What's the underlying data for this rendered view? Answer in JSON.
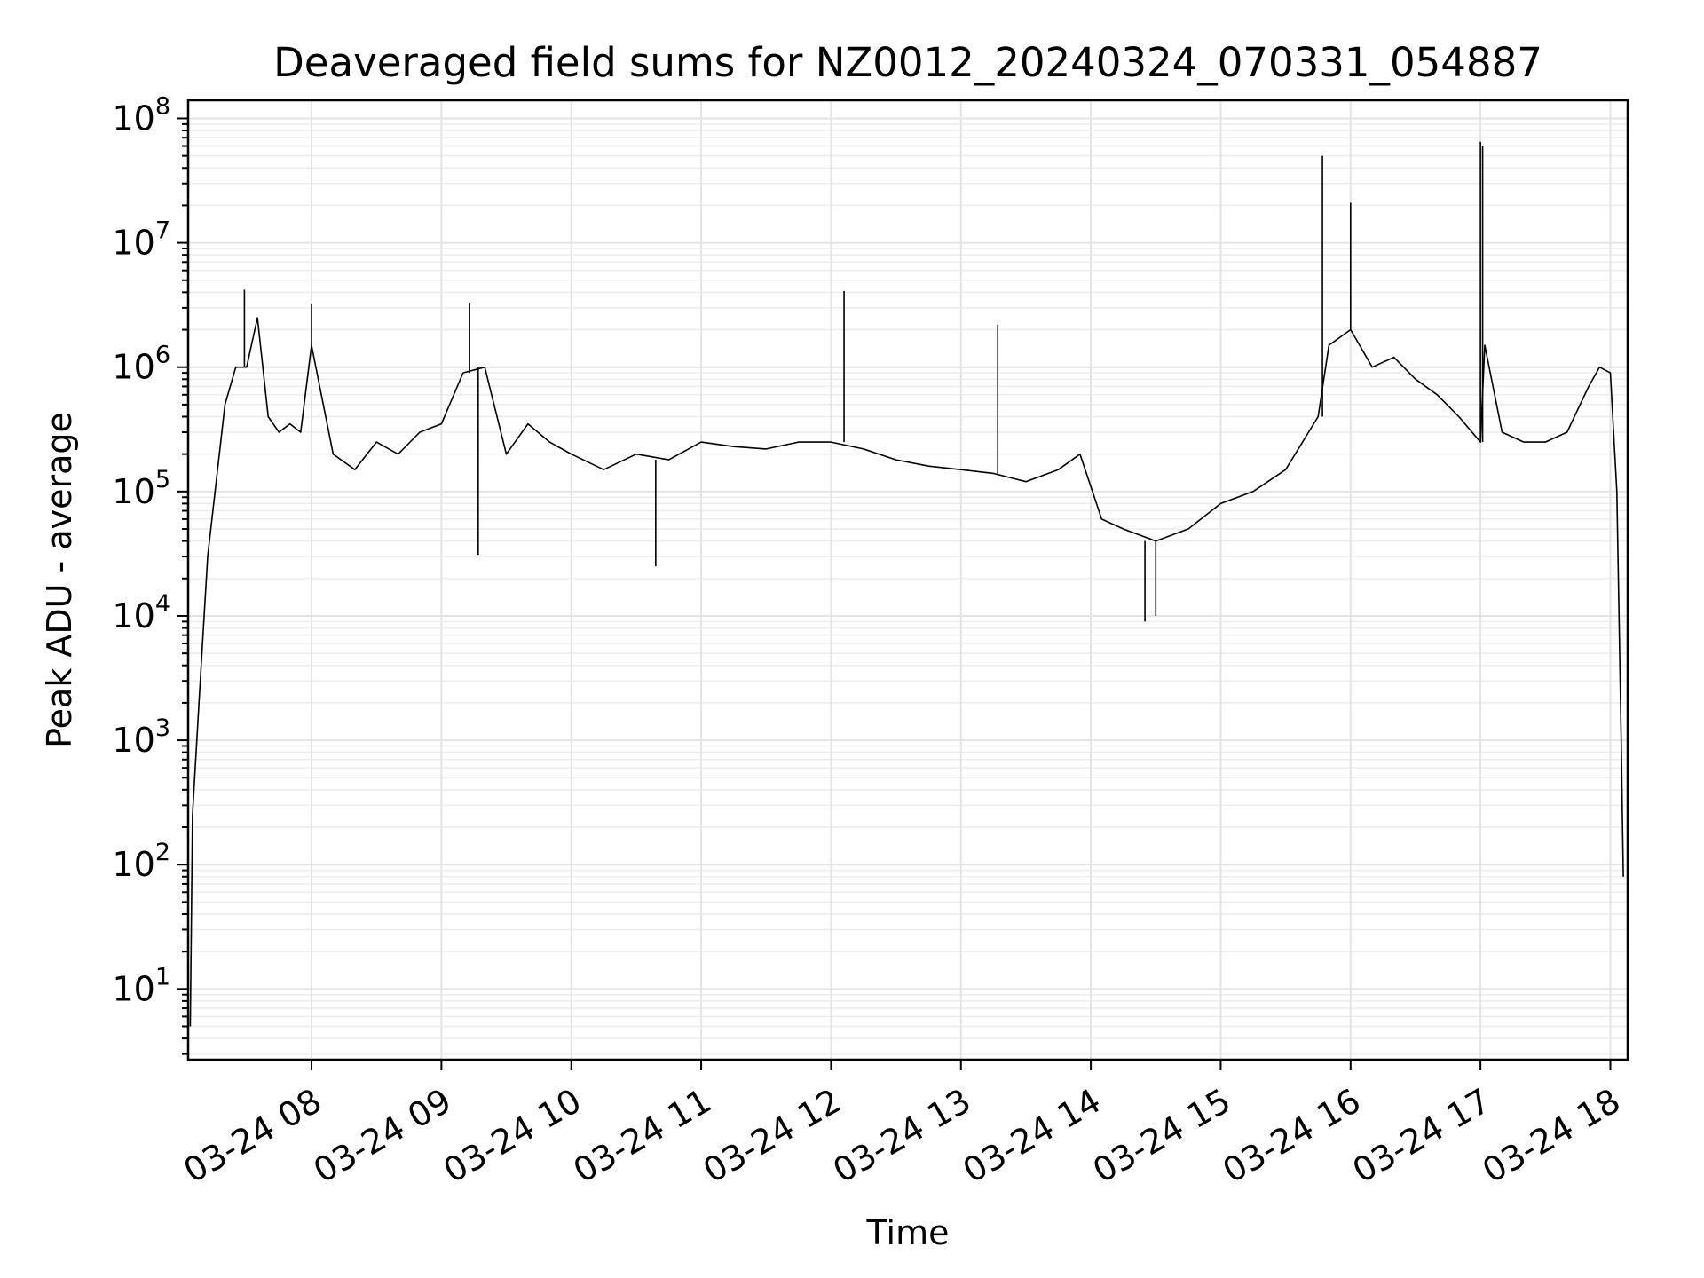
{
  "chart_data": {
    "type": "line",
    "title": "Deaveraged field sums for NZ0012_20240324_070331_054887",
    "xlabel": "Time",
    "ylabel": "Peak ADU - average",
    "yscale": "log",
    "grid": true,
    "ylim": [
      2.7,
      140000000
    ],
    "xlim": [
      "03-24 07:03",
      "03-24 18:08"
    ],
    "xticks": [
      "03-24 08",
      "03-24 09",
      "03-24 10",
      "03-24 11",
      "03-24 12",
      "03-24 13",
      "03-24 14",
      "03-24 15",
      "03-24 16",
      "03-24 17",
      "03-24 18"
    ],
    "yticks": [
      {
        "base": "10",
        "exp": "1",
        "value": 10
      },
      {
        "base": "10",
        "exp": "2",
        "value": 100
      },
      {
        "base": "10",
        "exp": "3",
        "value": 1000
      },
      {
        "base": "10",
        "exp": "4",
        "value": 10000
      },
      {
        "base": "10",
        "exp": "5",
        "value": 100000
      },
      {
        "base": "10",
        "exp": "6",
        "value": 1000000
      },
      {
        "base": "10",
        "exp": "7",
        "value": 10000000
      },
      {
        "base": "10",
        "exp": "8",
        "value": 100000000
      }
    ],
    "series": [
      {
        "color": "#000000",
        "x": [
          "03-24 07:04",
          "03-24 07:05",
          "03-24 07:08",
          "03-24 07:12",
          "03-24 07:20",
          "03-24 07:25",
          "03-24 07:30",
          "03-24 07:35",
          "03-24 07:40",
          "03-24 07:45",
          "03-24 07:50",
          "03-24 07:55",
          "03-24 08:00",
          "03-24 08:10",
          "03-24 08:20",
          "03-24 08:30",
          "03-24 08:40",
          "03-24 08:50",
          "03-24 09:00",
          "03-24 09:10",
          "03-24 09:20",
          "03-24 09:30",
          "03-24 09:40",
          "03-24 09:50",
          "03-24 10:00",
          "03-24 10:15",
          "03-24 10:30",
          "03-24 10:45",
          "03-24 11:00",
          "03-24 11:15",
          "03-24 11:30",
          "03-24 11:45",
          "03-24 12:00",
          "03-24 12:15",
          "03-24 12:30",
          "03-24 12:45",
          "03-24 13:00",
          "03-24 13:15",
          "03-24 13:30",
          "03-24 13:45",
          "03-24 13:55",
          "03-24 14:05",
          "03-24 14:15",
          "03-24 14:30",
          "03-24 14:45",
          "03-24 15:00",
          "03-24 15:15",
          "03-24 15:30",
          "03-24 15:45",
          "03-24 15:50",
          "03-24 16:00",
          "03-24 16:10",
          "03-24 16:20",
          "03-24 16:30",
          "03-24 16:40",
          "03-24 16:50",
          "03-24 17:00",
          "03-24 17:02",
          "03-24 17:10",
          "03-24 17:20",
          "03-24 17:30",
          "03-24 17:40",
          "03-24 17:50",
          "03-24 17:55",
          "03-24 18:00",
          "03-24 18:03",
          "03-24 18:05",
          "03-24 18:06"
        ],
        "y": [
          5,
          250,
          2000,
          30000,
          500000,
          1000000,
          1000000,
          2500000,
          400000,
          300000,
          350000,
          300000,
          1500000,
          200000,
          150000,
          250000,
          200000,
          300000,
          350000,
          900000,
          1000000,
          200000,
          350000,
          250000,
          200000,
          150000,
          200000,
          180000,
          250000,
          230000,
          220000,
          250000,
          250000,
          220000,
          180000,
          160000,
          150000,
          140000,
          120000,
          150000,
          200000,
          60000,
          50000,
          40000,
          50000,
          80000,
          100000,
          150000,
          400000,
          1500000,
          2000000,
          1000000,
          1200000,
          800000,
          600000,
          400000,
          250000,
          1500000,
          300000,
          250000,
          250000,
          300000,
          700000,
          1000000,
          900000,
          100000,
          1000,
          80
        ]
      }
    ],
    "spikes": [
      {
        "x": "03-24 07:29",
        "y": 4200000
      },
      {
        "x": "03-24 08:00",
        "y": 3200000
      },
      {
        "x": "03-24 09:13",
        "y": 3300000
      },
      {
        "x": "03-24 12:06",
        "y": 4100000
      },
      {
        "x": "03-24 13:17",
        "y": 2200000
      },
      {
        "x": "03-24 15:47",
        "y": 50000000
      },
      {
        "x": "03-24 16:00",
        "y": 21000000
      },
      {
        "x": "03-24 17:00",
        "y": 65000000
      },
      {
        "x": "03-24 17:01",
        "y": 60000000
      }
    ],
    "dips": [
      {
        "x": "03-24 09:17",
        "y": 31000
      },
      {
        "x": "03-24 10:39",
        "y": 25000
      },
      {
        "x": "03-24 14:25",
        "y": 9000
      },
      {
        "x": "03-24 14:30",
        "y": 10000
      }
    ]
  }
}
